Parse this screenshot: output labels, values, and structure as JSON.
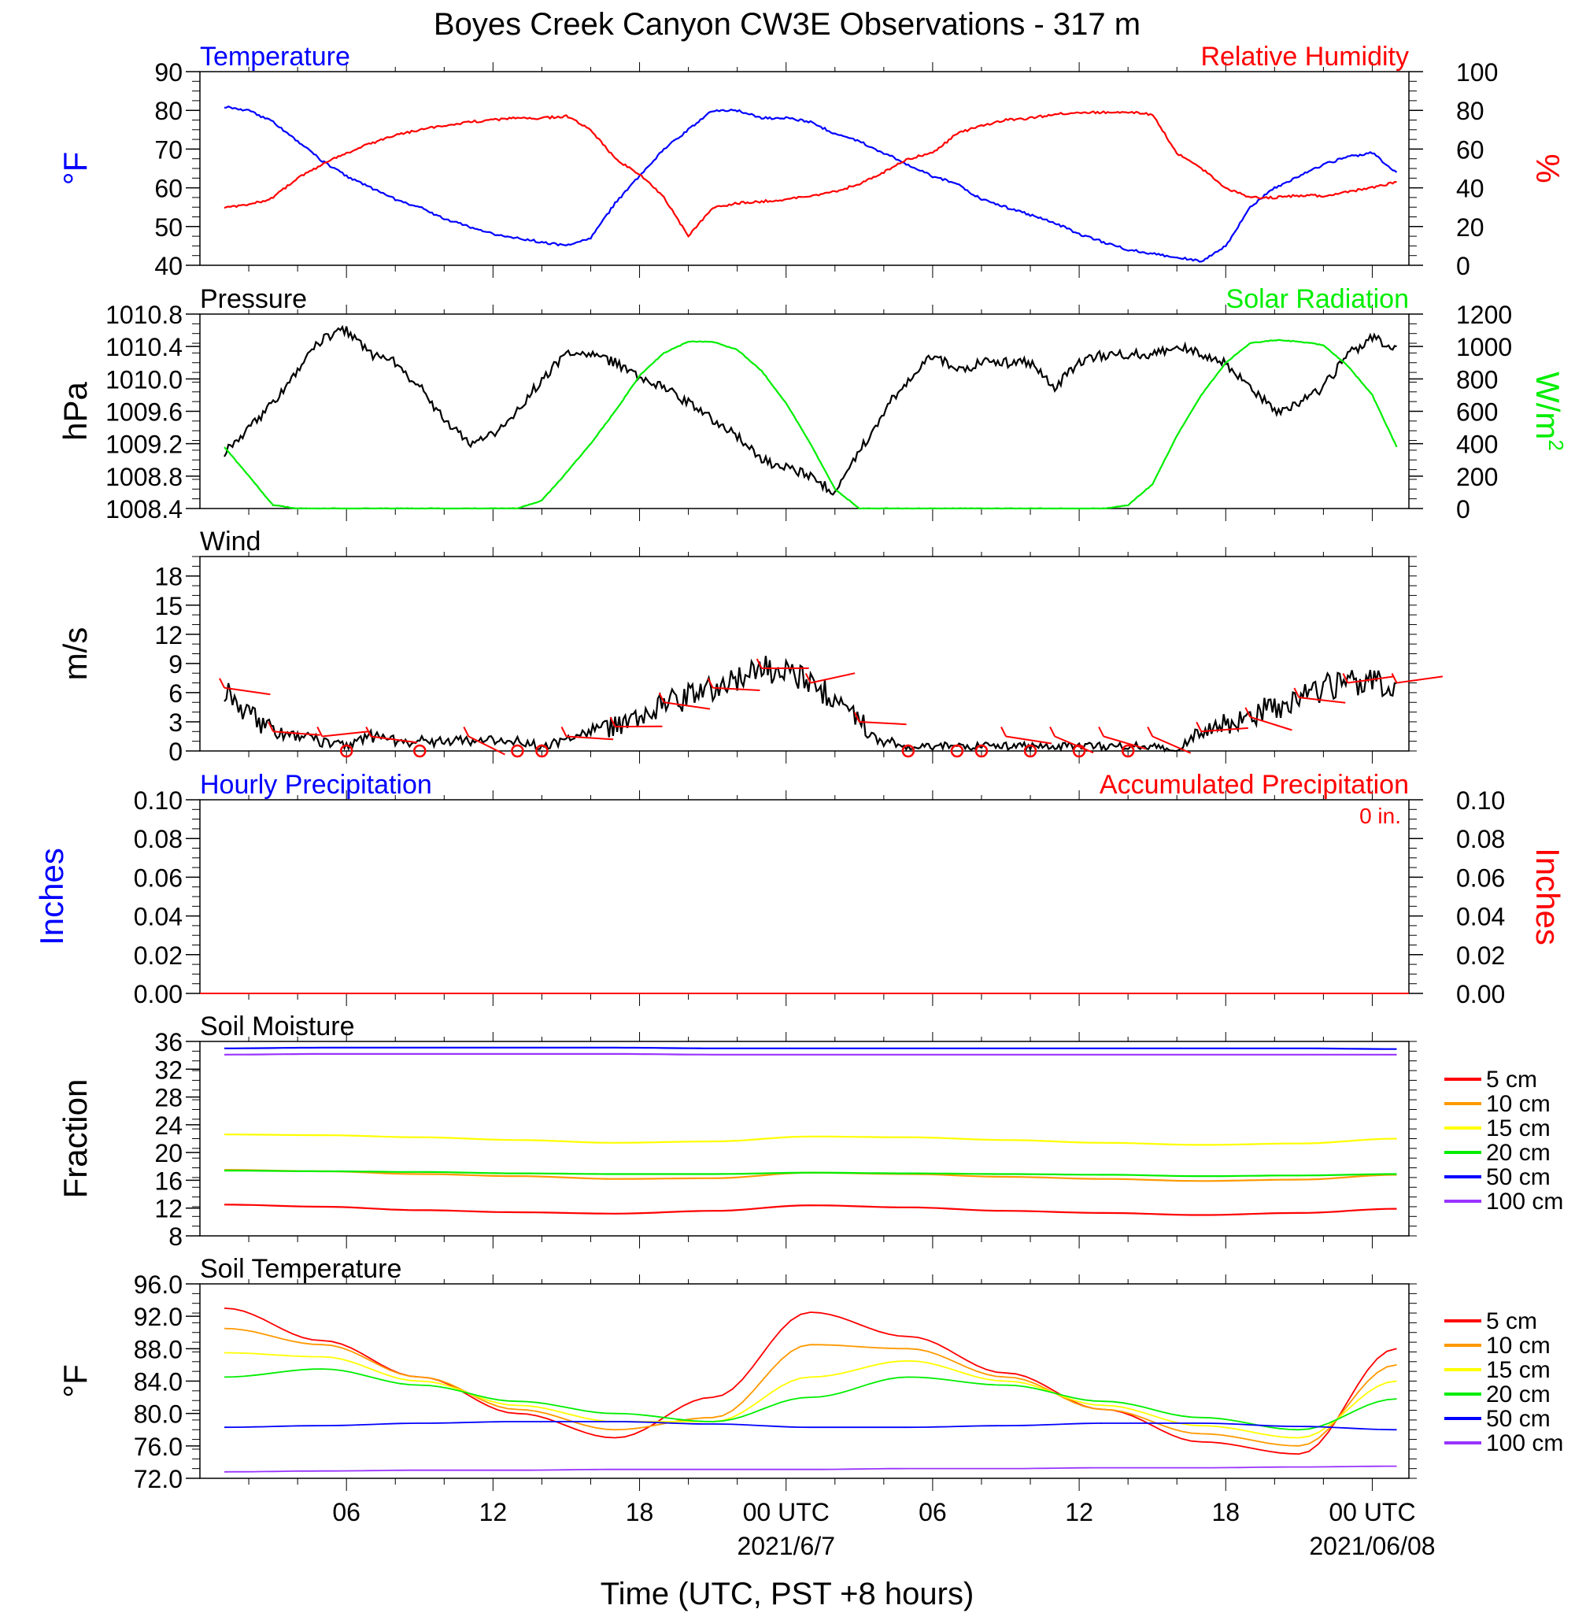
{
  "figure": {
    "title": "Boyes Creek Canyon CW3E Observations - 317 m",
    "xlabel": "Time (UTC, PST +8 hours)",
    "x_ticks": [
      "06",
      "12",
      "18",
      "00 UTC",
      "06",
      "12",
      "18",
      "00 UTC"
    ],
    "date_labels": [
      "2021/6/7",
      "2021/06/08"
    ]
  },
  "chart_data": [
    {
      "type": "line",
      "name": "temperature-rh",
      "title_left": "Temperature",
      "title_right": "Relative Humidity",
      "ylabel_left": "°F",
      "ylabel_right": "%",
      "ylim_left": [
        40,
        90
      ],
      "ylim_right": [
        0,
        100
      ],
      "yticks_left": [
        "90",
        "80",
        "70",
        "60",
        "50",
        "40"
      ],
      "yticks_right": [
        "100",
        "80",
        "60",
        "40",
        "20",
        "0"
      ],
      "x_hours": [
        1,
        2,
        3,
        4,
        5,
        6,
        7,
        8,
        9,
        10,
        11,
        12,
        13,
        14,
        15,
        16,
        17,
        18,
        19,
        20,
        21,
        22,
        23,
        24,
        25,
        26,
        27,
        28,
        29,
        30,
        31,
        32,
        33,
        34,
        35,
        36,
        37,
        38,
        39,
        40,
        41,
        42,
        43,
        44,
        45,
        46,
        47,
        48,
        49
      ],
      "series": [
        {
          "name": "Temperature",
          "color": "#0000ff",
          "axis": "left",
          "values": [
            81,
            80,
            77,
            72,
            67,
            63,
            60,
            57,
            55,
            52,
            50,
            48,
            47,
            46,
            45,
            47,
            56,
            63,
            70,
            75,
            80,
            80,
            78,
            78,
            77,
            74,
            72,
            69,
            66,
            63,
            61,
            57,
            55,
            53,
            51,
            48,
            46,
            44,
            43,
            42,
            41,
            45,
            55,
            60,
            63,
            66,
            68,
            69,
            64
          ]
        },
        {
          "name": "Relative Humidity",
          "color": "#ff0000",
          "axis": "right",
          "values": [
            30,
            31,
            35,
            45,
            52,
            58,
            63,
            67,
            70,
            72,
            74,
            75,
            76,
            76,
            77,
            70,
            55,
            47,
            35,
            15,
            30,
            32,
            33,
            34,
            36,
            38,
            42,
            48,
            55,
            58,
            68,
            72,
            75,
            76,
            78,
            79,
            79,
            79,
            78,
            58,
            50,
            40,
            35,
            35,
            36,
            36,
            38,
            40,
            43
          ]
        }
      ]
    },
    {
      "type": "line",
      "name": "pressure-solar",
      "title_left": "Pressure",
      "title_right": "Solar Radiation",
      "ylabel_left": "hPa",
      "ylabel_right": "W/m",
      "ylabel_right_sup": "2",
      "ylim_left": [
        1008.4,
        1010.8
      ],
      "ylim_right": [
        0,
        1200
      ],
      "yticks_left": [
        "1010.8",
        "1010.4",
        "1010.0",
        "1009.6",
        "1009.2",
        "1008.8",
        "1008.4"
      ],
      "yticks_right": [
        "1200",
        "1000",
        "800",
        "600",
        "400",
        "200",
        "0"
      ],
      "x_hours": [
        1,
        2,
        3,
        4,
        5,
        6,
        7,
        8,
        9,
        10,
        11,
        12,
        13,
        14,
        15,
        16,
        17,
        18,
        19,
        20,
        21,
        22,
        23,
        24,
        25,
        26,
        27,
        28,
        29,
        30,
        31,
        32,
        33,
        34,
        35,
        36,
        37,
        38,
        39,
        40,
        41,
        42,
        43,
        44,
        45,
        46,
        47,
        48,
        49
      ],
      "series": [
        {
          "name": "Pressure",
          "color": "#000000",
          "axis": "left",
          "values": [
            1009.1,
            1009.4,
            1009.7,
            1010.1,
            1010.5,
            1010.6,
            1010.3,
            1010.2,
            1009.9,
            1009.5,
            1009.2,
            1009.3,
            1009.6,
            1010.0,
            1010.3,
            1010.3,
            1010.2,
            1010.0,
            1009.9,
            1009.7,
            1009.5,
            1009.3,
            1009.0,
            1008.9,
            1008.8,
            1008.6,
            1009.1,
            1009.6,
            1010.0,
            1010.3,
            1010.1,
            1010.2,
            1010.2,
            1010.2,
            1009.9,
            1010.2,
            1010.3,
            1010.3,
            1010.3,
            1010.4,
            1010.3,
            1010.2,
            1009.9,
            1009.6,
            1009.7,
            1009.9,
            1010.3,
            1010.5,
            1010.4
          ]
        },
        {
          "name": "Solar Radiation",
          "color": "#00ee00",
          "axis": "right",
          "values": [
            380,
            200,
            20,
            0,
            0,
            0,
            0,
            0,
            0,
            0,
            0,
            0,
            0,
            50,
            220,
            400,
            600,
            820,
            960,
            1030,
            1030,
            980,
            850,
            650,
            400,
            120,
            0,
            0,
            0,
            0,
            0,
            0,
            0,
            0,
            0,
            0,
            0,
            20,
            150,
            450,
            700,
            900,
            1020,
            1040,
            1030,
            1010,
            880,
            700,
            380
          ]
        }
      ]
    },
    {
      "type": "line",
      "name": "wind",
      "title_left": "Wind",
      "ylabel_left": "m/s",
      "ylim_left": [
        0,
        20
      ],
      "yticks_left": [
        "18",
        "15",
        "12",
        "9",
        "6",
        "3",
        "0"
      ],
      "x_hours": [
        1,
        2,
        3,
        4,
        5,
        6,
        7,
        8,
        9,
        10,
        11,
        12,
        13,
        14,
        15,
        16,
        17,
        18,
        19,
        20,
        21,
        22,
        23,
        24,
        25,
        26,
        27,
        28,
        29,
        30,
        31,
        32,
        33,
        34,
        35,
        36,
        37,
        38,
        39,
        40,
        41,
        42,
        43,
        44,
        45,
        46,
        47,
        48,
        49
      ],
      "series": [
        {
          "name": "Wind",
          "color": "#000000",
          "axis": "left",
          "values": [
            6.5,
            4,
            2,
            1.5,
            1,
            0.5,
            1.5,
            1,
            1,
            1,
            1,
            1,
            1,
            0.5,
            1,
            2,
            2.5,
            3,
            5,
            5.5,
            6.5,
            7.5,
            8.5,
            8,
            7,
            5.5,
            3,
            1,
            0.5,
            0.5,
            0.5,
            0.5,
            0.5,
            0.5,
            0.5,
            0.5,
            0.5,
            0.5,
            0.5,
            0,
            2,
            3,
            3.5,
            4.5,
            5.5,
            6.5,
            7,
            7,
            7
          ]
        }
      ],
      "calm_hours": [
        6,
        9,
        13,
        14,
        29,
        31,
        32,
        34,
        36,
        38
      ],
      "barb_color": "#ff0000"
    },
    {
      "type": "bar",
      "name": "precipitation",
      "title_left": "Hourly Precipitation",
      "title_right": "Accumulated Precipitation",
      "annotation": "0 in.",
      "ylabel_left": "Inches",
      "ylabel_right": "Inches",
      "ylim_left": [
        0,
        0.1
      ],
      "ylim_right": [
        0,
        0.1
      ],
      "yticks_left": [
        "0.10",
        "0.08",
        "0.06",
        "0.04",
        "0.02",
        "0.00"
      ],
      "yticks_right": [
        "0.10",
        "0.08",
        "0.06",
        "0.04",
        "0.02",
        "0.00"
      ],
      "series": [
        {
          "name": "Hourly Precipitation",
          "color": "#0000ff",
          "values": [
            0
          ]
        },
        {
          "name": "Accumulated Precipitation",
          "color": "#ff0000",
          "values": [
            0
          ]
        }
      ]
    },
    {
      "type": "line",
      "name": "soil-moisture",
      "title_left": "Soil Moisture",
      "ylabel_left": "Fraction",
      "ylim_left": [
        8,
        36
      ],
      "yticks_left": [
        "36",
        "32",
        "28",
        "24",
        "20",
        "16",
        "12",
        "8"
      ],
      "x_hours": [
        1,
        5,
        9,
        13,
        17,
        21,
        25,
        29,
        33,
        37,
        41,
        45,
        49
      ],
      "series": [
        {
          "name": "5 cm",
          "color": "#ff0000",
          "values": [
            12.5,
            12.2,
            11.7,
            11.4,
            11.2,
            11.6,
            12.4,
            12.1,
            11.6,
            11.3,
            11.0,
            11.3,
            11.9
          ]
        },
        {
          "name": "10 cm",
          "color": "#ff9900",
          "values": [
            17.5,
            17.3,
            16.9,
            16.6,
            16.2,
            16.3,
            17.1,
            16.9,
            16.5,
            16.2,
            15.9,
            16.1,
            16.8
          ]
        },
        {
          "name": "15 cm",
          "color": "#ffff00",
          "values": [
            22.6,
            22.5,
            22.2,
            21.8,
            21.4,
            21.6,
            22.3,
            22.2,
            21.8,
            21.4,
            21.1,
            21.3,
            22.0
          ]
        },
        {
          "name": "20 cm",
          "color": "#00ee00",
          "values": [
            17.4,
            17.3,
            17.2,
            17.0,
            16.9,
            16.9,
            17.1,
            17.0,
            16.9,
            16.8,
            16.6,
            16.7,
            16.9
          ]
        },
        {
          "name": "50 cm",
          "color": "#0000ff",
          "values": [
            35.0,
            35.1,
            35.1,
            35.1,
            35.1,
            35.0,
            35.0,
            35.0,
            35.0,
            35.0,
            35.0,
            35.0,
            34.9
          ]
        },
        {
          "name": "100 cm",
          "color": "#9933ff",
          "values": [
            34.1,
            34.2,
            34.2,
            34.2,
            34.2,
            34.1,
            34.1,
            34.1,
            34.1,
            34.1,
            34.1,
            34.1,
            34.1
          ]
        }
      ]
    },
    {
      "type": "line",
      "name": "soil-temperature",
      "title_left": "Soil Temperature",
      "ylabel_left": "°F",
      "ylim_left": [
        72,
        96
      ],
      "yticks_left": [
        "96.0",
        "92.0",
        "88.0",
        "84.0",
        "80.0",
        "76.0",
        "72.0"
      ],
      "x_hours": [
        1,
        5,
        9,
        13,
        17,
        21,
        25,
        29,
        33,
        37,
        41,
        45,
        49
      ],
      "series": [
        {
          "name": "5 cm",
          "color": "#ff0000",
          "values": [
            93.0,
            89.0,
            84.5,
            80.0,
            77.0,
            82.0,
            92.5,
            89.5,
            85.0,
            80.5,
            76.5,
            75.0,
            88.0
          ]
        },
        {
          "name": "10 cm",
          "color": "#ff9900",
          "values": [
            90.5,
            88.5,
            84.5,
            80.5,
            78.0,
            79.5,
            88.5,
            88.0,
            84.5,
            80.5,
            77.5,
            76.0,
            86.0
          ]
        },
        {
          "name": "15 cm",
          "color": "#ffff00",
          "values": [
            87.5,
            87.0,
            84.0,
            81.0,
            79.0,
            79.0,
            84.5,
            86.5,
            84.0,
            81.0,
            78.5,
            77.0,
            84.0
          ]
        },
        {
          "name": "20 cm",
          "color": "#00ee00",
          "values": [
            84.5,
            85.5,
            83.5,
            81.5,
            80.0,
            79.0,
            82.0,
            84.5,
            83.5,
            81.5,
            79.5,
            78.0,
            81.8
          ]
        },
        {
          "name": "50 cm",
          "color": "#0000ff",
          "values": [
            78.3,
            78.5,
            78.8,
            79.0,
            79.0,
            78.7,
            78.3,
            78.3,
            78.5,
            78.8,
            78.8,
            78.4,
            78.0
          ]
        },
        {
          "name": "100 cm",
          "color": "#9933ff",
          "values": [
            72.8,
            72.9,
            73.0,
            73.0,
            73.1,
            73.1,
            73.1,
            73.2,
            73.2,
            73.3,
            73.3,
            73.4,
            73.5
          ]
        }
      ]
    }
  ],
  "legend_soil": [
    "5 cm",
    "10 cm",
    "15 cm",
    "20 cm",
    "50 cm",
    "100 cm"
  ]
}
